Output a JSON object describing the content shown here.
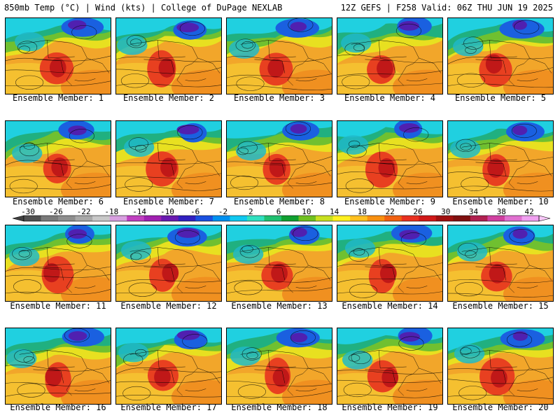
{
  "header": {
    "left": "850mb Temp (°C) | Wind (kts) | College of DuPage NEXLAB",
    "right": "12Z GEFS | F258 Valid: 06Z THU JUN 19 2025"
  },
  "panels": [
    {
      "label": "Ensemble Member: 1"
    },
    {
      "label": "Ensemble Member: 2"
    },
    {
      "label": "Ensemble Member: 3"
    },
    {
      "label": "Ensemble Member: 4"
    },
    {
      "label": "Ensemble Member: 5"
    },
    {
      "label": "Ensemble Member: 6"
    },
    {
      "label": "Ensemble Member: 7"
    },
    {
      "label": "Ensemble Member: 8"
    },
    {
      "label": "Ensemble Member: 9"
    },
    {
      "label": "Ensemble Member: 10"
    },
    {
      "label": "Ensemble Member: 11"
    },
    {
      "label": "Ensemble Member: 12"
    },
    {
      "label": "Ensemble Member: 13"
    },
    {
      "label": "Ensemble Member: 14"
    },
    {
      "label": "Ensemble Member: 15"
    },
    {
      "label": "Ensemble Member: 16"
    },
    {
      "label": "Ensemble Member: 17"
    },
    {
      "label": "Ensemble Member: 18"
    },
    {
      "label": "Ensemble Member: 19"
    },
    {
      "label": "Ensemble Member: 20"
    }
  ],
  "colorbar": {
    "ticks": [
      "-30",
      "-26",
      "-22",
      "-18",
      "-14",
      "-10",
      "-6",
      "-2",
      "2",
      "6",
      "10",
      "14",
      "18",
      "22",
      "26",
      "30",
      "34",
      "38",
      "42"
    ],
    "colors": [
      "#505050",
      "#7a7a7a",
      "#8e8e8e",
      "#a8a8a8",
      "#c8c8c8",
      "#d8a0e0",
      "#c040c0",
      "#a020b0",
      "#6a1ab0",
      "#3020c0",
      "#1a50e0",
      "#0090f0",
      "#10c8f0",
      "#30e0c0",
      "#20c070",
      "#10a030",
      "#70c020",
      "#c8e020",
      "#fff020",
      "#ffc020",
      "#f89010",
      "#f06010",
      "#e83020",
      "#d01818",
      "#a01010",
      "#801010",
      "#b02050",
      "#d040a0",
      "#e070d0",
      "#f0a0f0"
    ]
  }
}
